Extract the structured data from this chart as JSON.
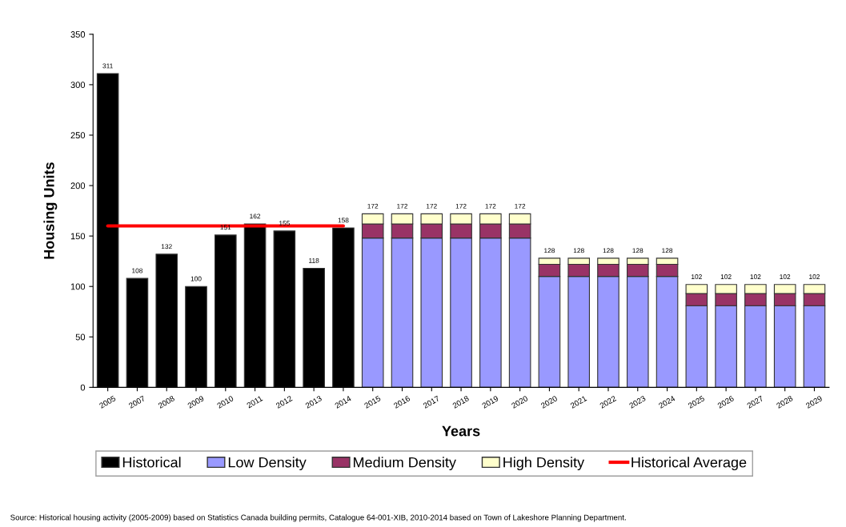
{
  "chart_data": {
    "type": "bar",
    "stacked": true,
    "xlabel": "Years",
    "ylabel": "Housing Units",
    "categories": [
      "2005",
      "2007",
      "2008",
      "2009",
      "2010",
      "2011",
      "2012",
      "2013",
      "2014",
      "2015",
      "2016",
      "2017",
      "2018",
      "2019",
      "2020",
      "2020",
      "2021",
      "2022",
      "2023",
      "2024",
      "2025",
      "2026",
      "2027",
      "2028",
      "2029"
    ],
    "series": [
      {
        "name": "Historical",
        "color": "#000000",
        "values": [
          311,
          108,
          132,
          100,
          151,
          162,
          155,
          118,
          158,
          null,
          null,
          null,
          null,
          null,
          null,
          null,
          null,
          null,
          null,
          null,
          null,
          null,
          null,
          null,
          null
        ]
      },
      {
        "name": "Low Density",
        "color": "#9999ff",
        "values": [
          null,
          null,
          null,
          null,
          null,
          null,
          null,
          null,
          null,
          148,
          148,
          148,
          148,
          148,
          148,
          110,
          110,
          110,
          110,
          110,
          81,
          81,
          81,
          81,
          81
        ]
      },
      {
        "name": "Medium Density",
        "color": "#993366",
        "values": [
          null,
          null,
          null,
          null,
          null,
          null,
          null,
          null,
          null,
          14,
          14,
          14,
          14,
          14,
          14,
          12,
          12,
          12,
          12,
          12,
          12,
          12,
          12,
          12,
          12
        ]
      },
      {
        "name": "High Density",
        "color": "#ffffcc",
        "values": [
          null,
          null,
          null,
          null,
          null,
          null,
          null,
          null,
          null,
          10,
          10,
          10,
          10,
          10,
          10,
          6,
          6,
          6,
          6,
          6,
          9,
          9,
          9,
          9,
          9
        ]
      },
      {
        "name": "Historical Average",
        "type": "line",
        "color": "#ff0000",
        "values": [
          160,
          160,
          160,
          160,
          160,
          160,
          160,
          160,
          160,
          null,
          null,
          null,
          null,
          null,
          null,
          null,
          null,
          null,
          null,
          null,
          null,
          null,
          null,
          null,
          null
        ]
      }
    ],
    "totals": [
      "311",
      "108",
      "132",
      "100",
      "151",
      "162",
      "155",
      "118",
      "158",
      "172",
      "172",
      "172",
      "172",
      "172",
      "172",
      "128",
      "128",
      "128",
      "128",
      "128",
      "102",
      "102",
      "102",
      "102",
      "102"
    ],
    "ylim": [
      0,
      350
    ],
    "yticks": [
      0,
      50,
      100,
      150,
      200,
      250,
      300,
      350
    ],
    "grid": false,
    "legend": "bottom",
    "annotations": [
      "Source: Historical housing activity (2005-2009) based on Statistics Canada building permits, Catalogue 64-001-XIB, 2010-2014 based on Town of Lakeshore Planning Department."
    ]
  }
}
